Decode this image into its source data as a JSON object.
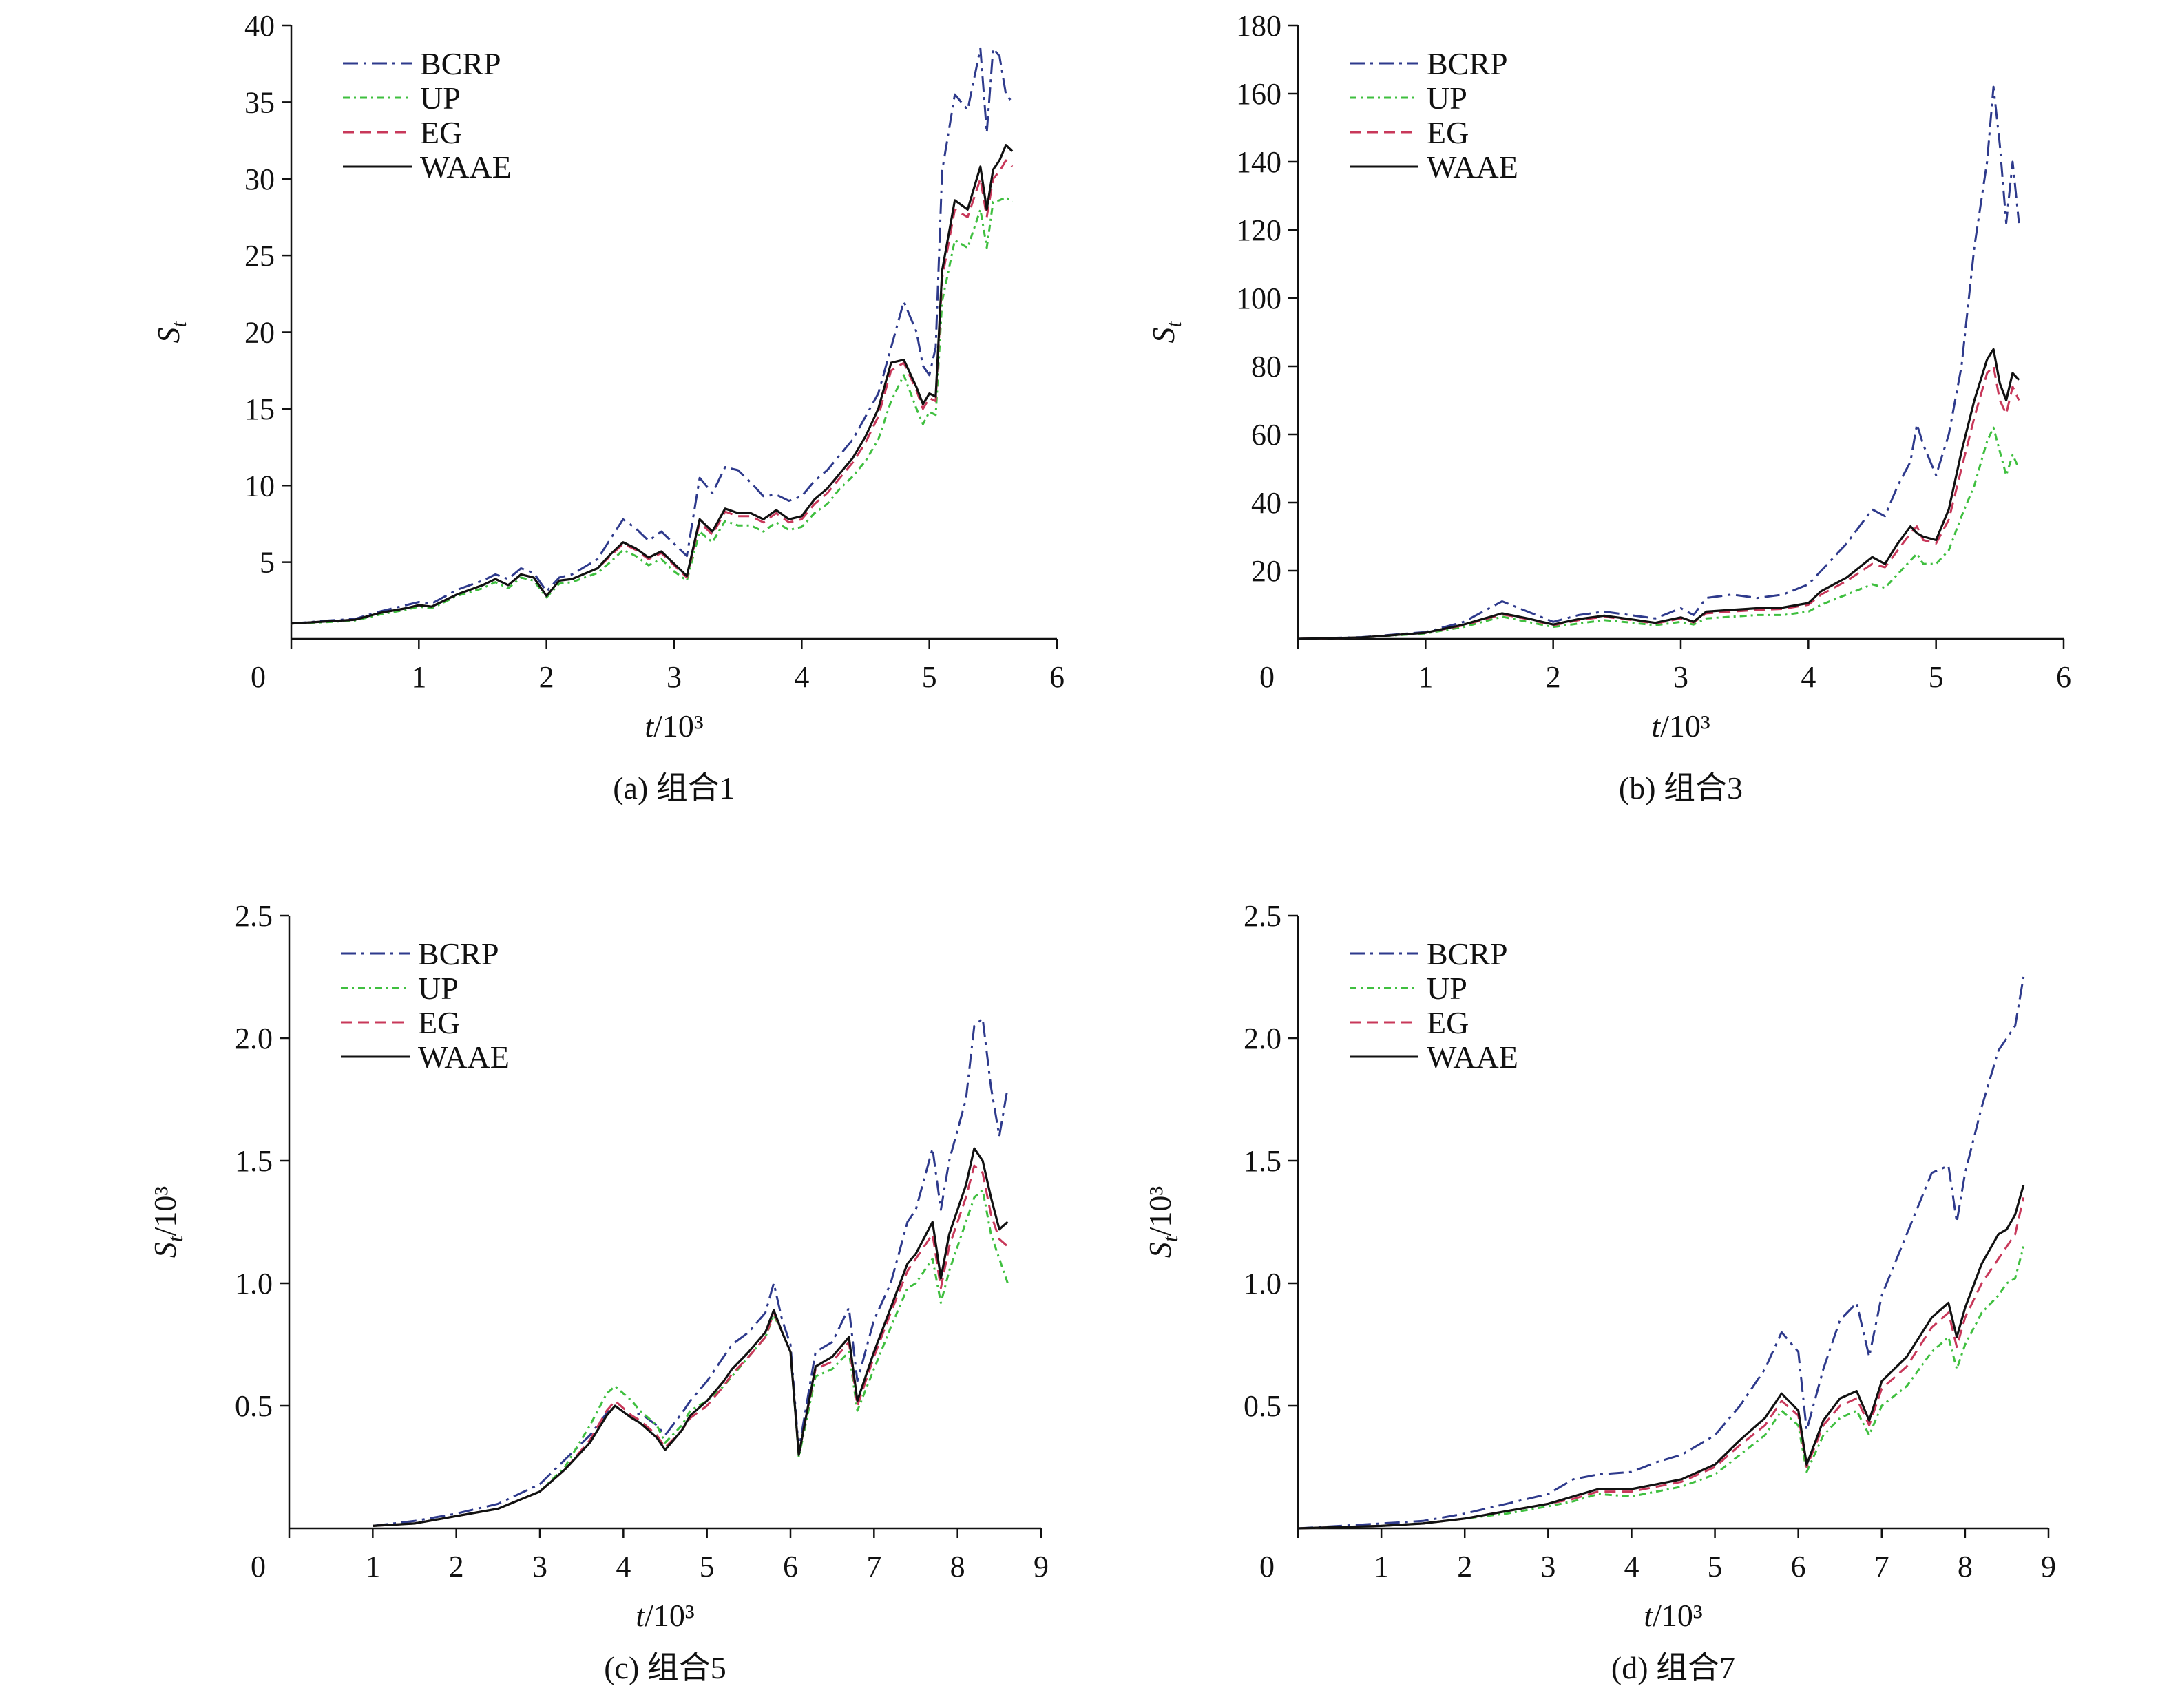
{
  "figure": {
    "legend_entries": [
      "BCRP",
      "UP",
      "EG",
      "WAAE"
    ],
    "series_colors": {
      "BCRP": "#2e3a8c",
      "UP": "#3fbf3f",
      "EG": "#c8385a",
      "WAAE": "#111111"
    }
  },
  "chart_data": [
    {
      "type": "line",
      "panel": "a",
      "caption": "(a) 组合1",
      "xlabel": "t/10³",
      "ylabel": "S_t",
      "xlim": [
        0,
        6
      ],
      "ylim": [
        0,
        40
      ],
      "xticks": [
        "0",
        "1",
        "2",
        "3",
        "4",
        "5",
        "6"
      ],
      "yticks": [
        "5",
        "10",
        "15",
        "20",
        "25",
        "30",
        "35",
        "40"
      ],
      "legend_position": "top-left",
      "x": [
        0,
        0.3,
        0.5,
        0.7,
        0.9,
        1.0,
        1.1,
        1.3,
        1.5,
        1.6,
        1.7,
        1.8,
        1.9,
        2.0,
        2.1,
        2.2,
        2.4,
        2.5,
        2.6,
        2.7,
        2.8,
        2.9,
        3.0,
        3.1,
        3.2,
        3.3,
        3.4,
        3.5,
        3.6,
        3.7,
        3.8,
        3.9,
        4.0,
        4.1,
        4.2,
        4.3,
        4.4,
        4.5,
        4.6,
        4.7,
        4.8,
        4.9,
        4.95,
        5.0,
        5.05,
        5.1,
        5.2,
        5.3,
        5.4,
        5.45,
        5.5,
        5.55,
        5.6,
        5.65
      ],
      "series": [
        {
          "name": "BCRP",
          "values": [
            1,
            1.2,
            1.3,
            1.8,
            2.2,
            2.4,
            2.3,
            3.2,
            3.8,
            4.2,
            3.9,
            4.6,
            4.3,
            3.1,
            4.0,
            4.2,
            5.2,
            6.5,
            7.8,
            7.2,
            6.4,
            7.0,
            6.2,
            5.4,
            10.5,
            9.5,
            11.2,
            11.0,
            10.2,
            9.3,
            9.4,
            9.0,
            9.3,
            10.3,
            11.0,
            12.0,
            13.0,
            14.5,
            16.0,
            19.0,
            22.0,
            20.0,
            17.8,
            17.2,
            19.0,
            30.5,
            35.5,
            34.5,
            38.5,
            33.0,
            38.5,
            38.0,
            35.5,
            35.0
          ]
        },
        {
          "name": "UP",
          "values": [
            1,
            1.1,
            1.2,
            1.6,
            1.9,
            2.1,
            2.0,
            2.8,
            3.3,
            3.7,
            3.3,
            4.0,
            3.8,
            2.7,
            3.6,
            3.7,
            4.3,
            5.0,
            5.8,
            5.4,
            4.8,
            5.2,
            4.4,
            3.8,
            7.0,
            6.3,
            7.7,
            7.4,
            7.4,
            7.0,
            7.6,
            7.1,
            7.3,
            8.2,
            8.8,
            9.8,
            10.6,
            11.6,
            13.0,
            15.5,
            17.2,
            15.0,
            14.0,
            14.8,
            14.6,
            22.0,
            26.0,
            25.5,
            28.0,
            25.5,
            28.5,
            28.6,
            28.8,
            28.5
          ]
        },
        {
          "name": "EG",
          "values": [
            1,
            1.15,
            1.25,
            1.7,
            2.0,
            2.2,
            2.1,
            2.9,
            3.5,
            3.9,
            3.5,
            4.2,
            4.0,
            2.8,
            3.8,
            3.9,
            4.6,
            5.4,
            6.2,
            5.8,
            5.2,
            5.6,
            4.8,
            4.0,
            7.6,
            6.8,
            8.3,
            8.0,
            8.0,
            7.6,
            8.2,
            7.6,
            7.8,
            8.8,
            9.5,
            10.5,
            11.5,
            12.8,
            14.5,
            17.5,
            18.0,
            16.2,
            15.0,
            15.7,
            15.5,
            23.5,
            28.0,
            27.5,
            30.0,
            27.5,
            30.0,
            30.5,
            31.2,
            30.8
          ]
        },
        {
          "name": "WAAE",
          "values": [
            1,
            1.15,
            1.25,
            1.7,
            2.0,
            2.2,
            2.1,
            2.9,
            3.5,
            3.9,
            3.5,
            4.2,
            4.0,
            2.8,
            3.8,
            3.9,
            4.6,
            5.5,
            6.3,
            5.9,
            5.3,
            5.7,
            4.9,
            4.1,
            7.8,
            7.0,
            8.5,
            8.2,
            8.2,
            7.8,
            8.4,
            7.8,
            8.0,
            9.1,
            9.8,
            10.8,
            11.8,
            13.2,
            15.0,
            18.0,
            18.2,
            16.4,
            15.3,
            16.0,
            15.8,
            24.0,
            28.6,
            28.0,
            30.8,
            28.0,
            30.6,
            31.2,
            32.2,
            31.8
          ]
        }
      ]
    },
    {
      "type": "line",
      "panel": "b",
      "caption": "(b) 组合3",
      "xlabel": "t/10³",
      "ylabel": "S_t",
      "xlim": [
        0,
        6
      ],
      "ylim": [
        0,
        180
      ],
      "xticks": [
        "0",
        "1",
        "2",
        "3",
        "4",
        "5",
        "6"
      ],
      "yticks": [
        "20",
        "40",
        "60",
        "80",
        "100",
        "120",
        "140",
        "160",
        "180"
      ],
      "legend_position": "top-left",
      "x": [
        0,
        0.5,
        1.0,
        1.3,
        1.6,
        1.8,
        2.0,
        2.2,
        2.4,
        2.6,
        2.8,
        3.0,
        3.1,
        3.2,
        3.4,
        3.6,
        3.8,
        4.0,
        4.1,
        4.3,
        4.5,
        4.6,
        4.7,
        4.8,
        4.85,
        4.9,
        5.0,
        5.1,
        5.2,
        5.3,
        5.4,
        5.45,
        5.5,
        5.55,
        5.6,
        5.65
      ],
      "series": [
        {
          "name": "BCRP",
          "values": [
            0,
            0.5,
            2,
            5,
            11,
            8,
            5,
            7,
            8,
            7,
            6,
            9,
            7,
            12,
            13,
            12,
            13,
            16,
            20,
            28,
            38,
            36,
            45,
            52,
            63,
            57,
            48,
            60,
            80,
            115,
            140,
            162,
            145,
            122,
            140,
            122
          ]
        },
        {
          "name": "UP",
          "values": [
            0,
            0.4,
            1.6,
            3.5,
            6.5,
            5,
            3.5,
            4.5,
            5.5,
            4.8,
            4,
            5,
            4.2,
            6,
            6.5,
            7,
            7,
            8,
            10,
            13,
            16,
            15,
            19,
            23,
            25,
            22,
            22,
            26,
            36,
            45,
            58,
            62,
            55,
            48,
            54,
            50
          ]
        },
        {
          "name": "EG",
          "values": [
            0,
            0.4,
            1.8,
            4,
            7.2,
            5.8,
            4,
            5.5,
            6.5,
            5.6,
            4.5,
            6,
            4.8,
            7.5,
            8,
            8.5,
            8.8,
            10,
            13,
            17,
            22,
            21,
            26,
            31,
            33,
            29,
            28,
            35,
            50,
            65,
            78,
            80,
            70,
            66,
            74,
            70
          ]
        },
        {
          "name": "WAAE",
          "values": [
            0,
            0.4,
            1.8,
            4.2,
            7.5,
            6,
            4.2,
            5.8,
            6.8,
            5.8,
            4.7,
            6.3,
            5,
            8,
            8.5,
            9,
            9.2,
            10.5,
            14,
            18,
            24,
            22,
            28,
            33,
            31,
            30,
            29,
            38,
            55,
            70,
            82,
            85,
            75,
            70,
            78,
            76
          ]
        }
      ]
    },
    {
      "type": "line",
      "panel": "c",
      "caption": "(c) 组合5",
      "xlabel": "t/10³",
      "ylabel": "S_t/10³",
      "xlim": [
        0,
        9
      ],
      "ylim": [
        0,
        2.5
      ],
      "xticks": [
        "0",
        "1",
        "2",
        "3",
        "4",
        "5",
        "6",
        "7",
        "8",
        "9"
      ],
      "yticks": [
        "0.5",
        "1.0",
        "1.5",
        "2.0",
        "2.5"
      ],
      "legend_position": "top-left",
      "x": [
        1.0,
        1.5,
        2.0,
        2.5,
        3.0,
        3.3,
        3.6,
        3.8,
        3.9,
        4.1,
        4.2,
        4.4,
        4.5,
        4.7,
        4.8,
        5.0,
        5.2,
        5.3,
        5.5,
        5.7,
        5.8,
        5.9,
        6.0,
        6.1,
        6.3,
        6.5,
        6.7,
        6.8,
        7.0,
        7.2,
        7.4,
        7.5,
        7.7,
        7.8,
        7.9,
        8.1,
        8.2,
        8.3,
        8.4,
        8.5,
        8.6
      ],
      "series": [
        {
          "name": "BCRP",
          "values": [
            0.01,
            0.03,
            0.06,
            0.1,
            0.18,
            0.28,
            0.38,
            0.47,
            0.5,
            0.45,
            0.47,
            0.42,
            0.38,
            0.47,
            0.52,
            0.6,
            0.7,
            0.75,
            0.8,
            0.88,
            1.0,
            0.85,
            0.75,
            0.32,
            0.72,
            0.76,
            0.9,
            0.6,
            0.85,
            1.0,
            1.25,
            1.3,
            1.55,
            1.3,
            1.5,
            1.75,
            2.05,
            2.08,
            1.8,
            1.6,
            1.8
          ]
        },
        {
          "name": "UP",
          "values": [
            0.01,
            0.02,
            0.05,
            0.08,
            0.15,
            0.25,
            0.42,
            0.55,
            0.58,
            0.52,
            0.48,
            0.42,
            0.35,
            0.42,
            0.48,
            0.52,
            0.58,
            0.62,
            0.7,
            0.78,
            0.87,
            0.8,
            0.72,
            0.29,
            0.62,
            0.65,
            0.72,
            0.48,
            0.65,
            0.82,
            0.98,
            1.0,
            1.1,
            0.92,
            1.05,
            1.25,
            1.35,
            1.38,
            1.2,
            1.1,
            1.0
          ]
        },
        {
          "name": "EG",
          "values": [
            0.01,
            0.02,
            0.05,
            0.08,
            0.15,
            0.24,
            0.36,
            0.48,
            0.52,
            0.46,
            0.44,
            0.38,
            0.33,
            0.4,
            0.45,
            0.5,
            0.58,
            0.63,
            0.7,
            0.78,
            0.88,
            0.8,
            0.72,
            0.3,
            0.65,
            0.68,
            0.76,
            0.5,
            0.7,
            0.88,
            1.05,
            1.1,
            1.2,
            0.98,
            1.15,
            1.35,
            1.48,
            1.45,
            1.28,
            1.18,
            1.15
          ]
        },
        {
          "name": "WAAE",
          "values": [
            0.01,
            0.02,
            0.05,
            0.08,
            0.15,
            0.24,
            0.35,
            0.46,
            0.5,
            0.45,
            0.43,
            0.37,
            0.32,
            0.4,
            0.46,
            0.52,
            0.6,
            0.65,
            0.72,
            0.8,
            0.89,
            0.8,
            0.72,
            0.3,
            0.66,
            0.7,
            0.78,
            0.52,
            0.72,
            0.9,
            1.08,
            1.12,
            1.25,
            1.02,
            1.2,
            1.4,
            1.55,
            1.5,
            1.35,
            1.22,
            1.25
          ]
        }
      ]
    },
    {
      "type": "line",
      "panel": "d",
      "caption": "(d) 组合7",
      "xlabel": "t/10³",
      "ylabel": "S_t/10³",
      "xlim": [
        0,
        9
      ],
      "ylim": [
        0,
        2.5
      ],
      "xticks": [
        "0",
        "1",
        "2",
        "3",
        "4",
        "5",
        "6",
        "7",
        "8",
        "9"
      ],
      "yticks": [
        "0.5",
        "1.0",
        "1.5",
        "2.0",
        "2.5"
      ],
      "legend_position": "top-left",
      "x": [
        0,
        1.0,
        1.5,
        2.0,
        2.5,
        3.0,
        3.3,
        3.6,
        4.0,
        4.3,
        4.6,
        5.0,
        5.3,
        5.6,
        5.8,
        6.0,
        6.1,
        6.3,
        6.5,
        6.7,
        6.85,
        7.0,
        7.3,
        7.6,
        7.8,
        7.9,
        8.0,
        8.2,
        8.4,
        8.5,
        8.6,
        8.7
      ],
      "series": [
        {
          "name": "BCRP",
          "values": [
            0,
            0.02,
            0.03,
            0.06,
            0.1,
            0.14,
            0.2,
            0.22,
            0.23,
            0.27,
            0.3,
            0.38,
            0.5,
            0.65,
            0.8,
            0.72,
            0.4,
            0.65,
            0.85,
            0.92,
            0.7,
            0.95,
            1.2,
            1.45,
            1.48,
            1.25,
            1.45,
            1.72,
            1.95,
            2.0,
            2.05,
            2.25
          ]
        },
        {
          "name": "UP",
          "values": [
            0,
            0.01,
            0.02,
            0.04,
            0.06,
            0.09,
            0.11,
            0.14,
            0.13,
            0.15,
            0.17,
            0.22,
            0.3,
            0.38,
            0.48,
            0.42,
            0.23,
            0.38,
            0.45,
            0.48,
            0.38,
            0.5,
            0.58,
            0.72,
            0.78,
            0.65,
            0.75,
            0.88,
            0.95,
            1.0,
            1.02,
            1.15
          ]
        },
        {
          "name": "EG",
          "values": [
            0,
            0.01,
            0.02,
            0.04,
            0.07,
            0.1,
            0.12,
            0.15,
            0.15,
            0.17,
            0.19,
            0.25,
            0.34,
            0.42,
            0.52,
            0.46,
            0.25,
            0.42,
            0.5,
            0.53,
            0.42,
            0.57,
            0.66,
            0.82,
            0.88,
            0.74,
            0.86,
            1.0,
            1.1,
            1.15,
            1.2,
            1.35
          ]
        },
        {
          "name": "WAAE",
          "values": [
            0,
            0.01,
            0.02,
            0.04,
            0.07,
            0.1,
            0.13,
            0.16,
            0.16,
            0.18,
            0.2,
            0.26,
            0.36,
            0.45,
            0.55,
            0.48,
            0.26,
            0.44,
            0.53,
            0.56,
            0.44,
            0.6,
            0.7,
            0.86,
            0.92,
            0.78,
            0.9,
            1.08,
            1.2,
            1.22,
            1.28,
            1.4
          ]
        }
      ]
    }
  ]
}
